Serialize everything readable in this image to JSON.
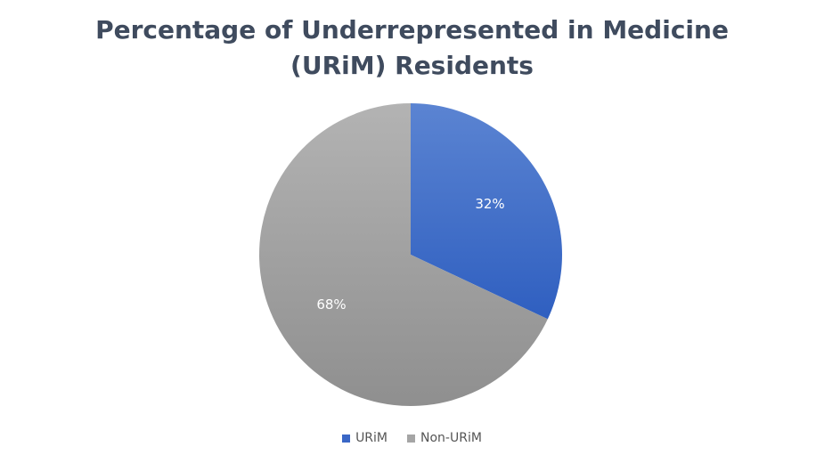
{
  "chart_data": {
    "type": "pie",
    "title_lines": [
      "Percentage of Underrepresented in Medicine",
      "(URiM) Residents"
    ],
    "slices": [
      {
        "label": "URiM",
        "value": 32,
        "display": "32%",
        "color": "#4472c4"
      },
      {
        "label": "Non-URiM",
        "value": 68,
        "display": "68%",
        "color": "#a5a5a5"
      }
    ],
    "legend_position": "bottom"
  }
}
